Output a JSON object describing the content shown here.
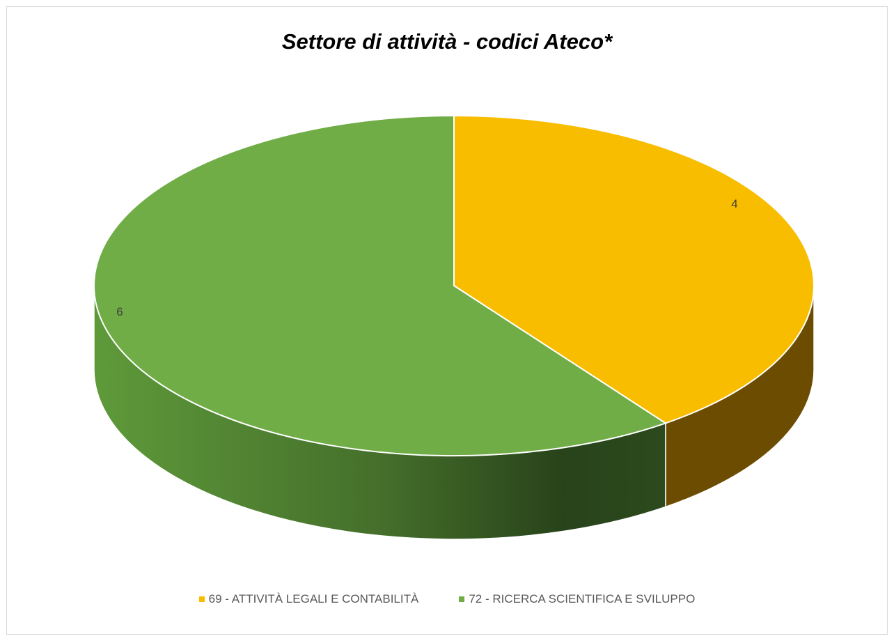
{
  "chart_data": {
    "type": "pie",
    "title": "Settore di attività - codici Ateco*",
    "categories": [
      "69 - ATTIVITÀ LEGALI E CONTABILITÀ",
      "72 - RICERCA SCIENTIFICA E SVILUPPO"
    ],
    "values": [
      4,
      6
    ],
    "data_labels": [
      "4",
      "6"
    ],
    "colors": [
      "#f9bd00",
      "#70ad47"
    ],
    "side_colors": [
      "#6b4c00",
      "#2c4a1a"
    ],
    "style": "3d-pie",
    "legend_position": "bottom"
  }
}
